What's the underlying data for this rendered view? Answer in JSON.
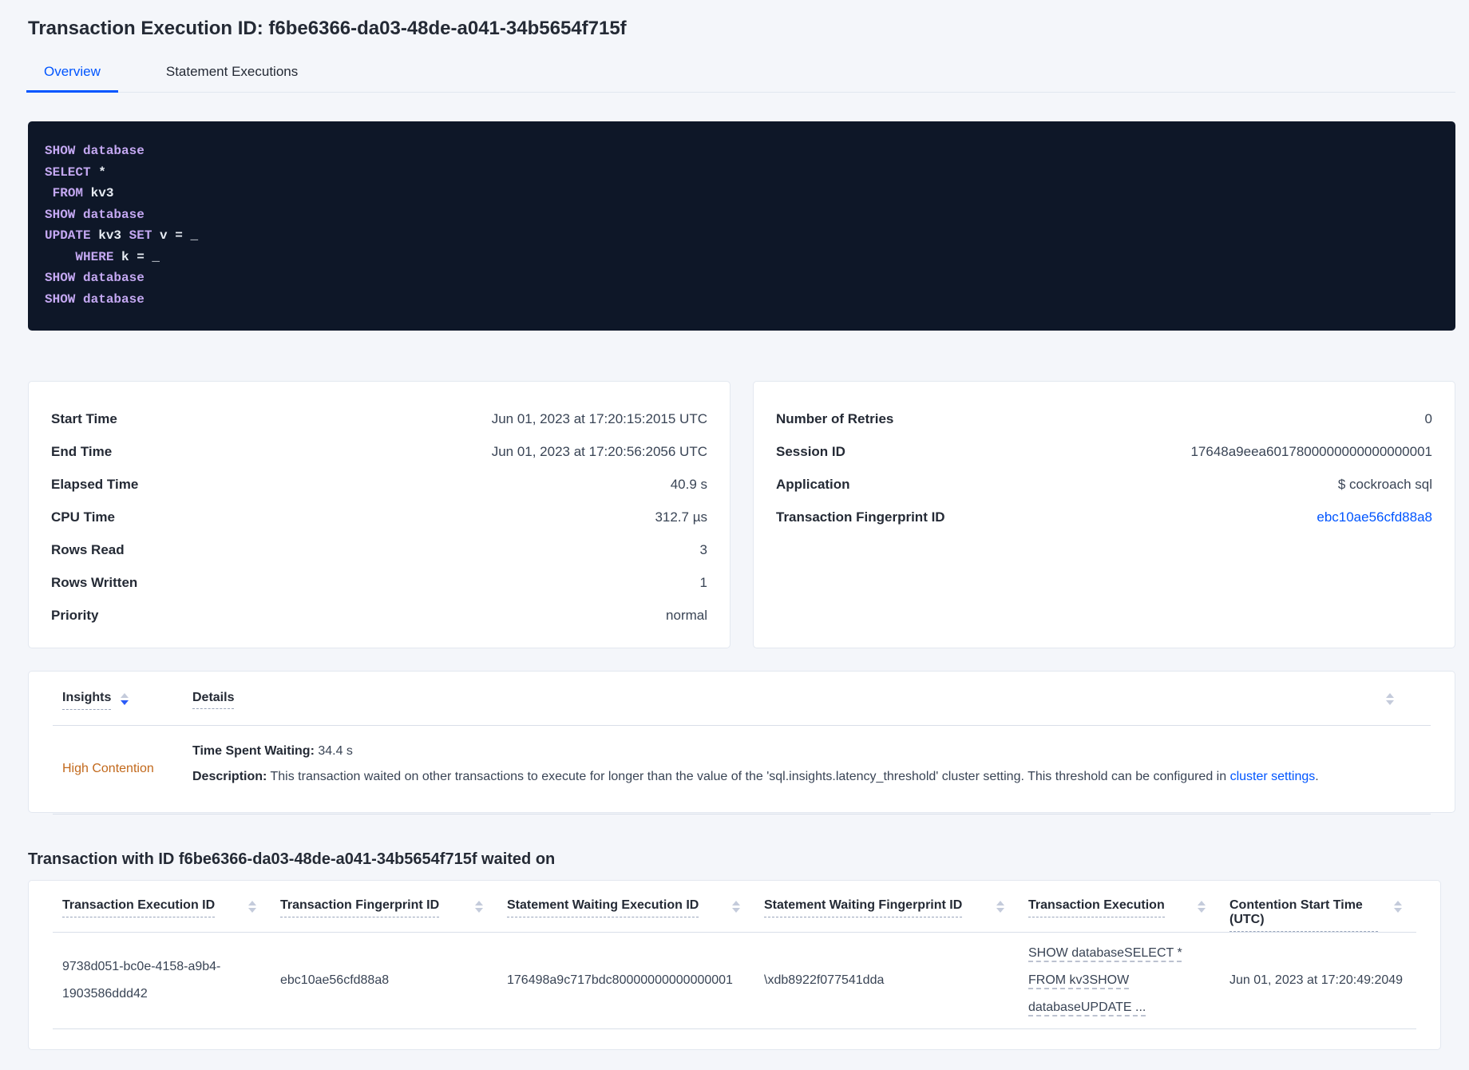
{
  "header": {
    "title": "Transaction Execution ID: f6be6366-da03-48de-a041-34b5654f715f",
    "tabs": [
      {
        "label": "Overview",
        "active": true
      },
      {
        "label": "Statement Executions",
        "active": false
      }
    ]
  },
  "colors": {
    "accent_blue": "#0055ff",
    "sql_background": "#0e1728",
    "sql_keyword": "#c4a8f2",
    "sql_plain": "#e7ecf3",
    "insight_warning": "#c2691c"
  },
  "sql_box": {
    "lines": [
      [
        {
          "kw": true,
          "v": "SHOW"
        },
        {
          "kw": false,
          "v": " "
        },
        {
          "kw": true,
          "v": "database"
        }
      ],
      [
        {
          "kw": true,
          "v": "SELECT"
        },
        {
          "kw": false,
          "v": " *"
        }
      ],
      [
        {
          "kw": false,
          "v": " "
        },
        {
          "kw": true,
          "v": "FROM"
        },
        {
          "kw": false,
          "v": " kv3"
        }
      ],
      [
        {
          "kw": true,
          "v": "SHOW"
        },
        {
          "kw": false,
          "v": " "
        },
        {
          "kw": true,
          "v": "database"
        }
      ],
      [
        {
          "kw": true,
          "v": "UPDATE"
        },
        {
          "kw": false,
          "v": " kv3 "
        },
        {
          "kw": true,
          "v": "SET"
        },
        {
          "kw": false,
          "v": " v = _"
        }
      ],
      [
        {
          "kw": false,
          "v": "    "
        },
        {
          "kw": true,
          "v": "WHERE"
        },
        {
          "kw": false,
          "v": " k = _"
        }
      ],
      [
        {
          "kw": true,
          "v": "SHOW"
        },
        {
          "kw": false,
          "v": " "
        },
        {
          "kw": true,
          "v": "database"
        }
      ],
      [
        {
          "kw": true,
          "v": "SHOW"
        },
        {
          "kw": false,
          "v": " "
        },
        {
          "kw": true,
          "v": "database"
        }
      ]
    ]
  },
  "left_card": {
    "rows": [
      {
        "label": "Start Time",
        "value": "Jun 01, 2023 at 17:20:15:2015 UTC"
      },
      {
        "label": "End Time",
        "value": "Jun 01, 2023 at 17:20:56:2056 UTC"
      },
      {
        "label": "Elapsed Time",
        "value": "40.9 s"
      },
      {
        "label": "CPU Time",
        "value": "312.7 µs"
      },
      {
        "label": "Rows Read",
        "value": "3"
      },
      {
        "label": "Rows Written",
        "value": "1"
      },
      {
        "label": "Priority",
        "value": "normal"
      }
    ]
  },
  "right_card": {
    "rows": [
      {
        "label": "Number of Retries",
        "value": "0"
      },
      {
        "label": "Session ID",
        "value": "17648a9eea6017800000000000000001"
      },
      {
        "label": "Application",
        "value": "$ cockroach sql"
      },
      {
        "label": "Transaction Fingerprint ID",
        "value": "ebc10ae56cfd88a8",
        "link": true
      }
    ]
  },
  "insights_table": {
    "columns": [
      "Insights",
      "Details"
    ],
    "row": {
      "insight": "High Contention",
      "waiting_label": "Time Spent Waiting:",
      "waiting_value": "34.4 s",
      "description_label": "Description:",
      "description_text": "This transaction waited on other transactions to execute for longer than the value of the 'sql.insights.latency_threshold' cluster setting. This threshold can be configured in ",
      "description_link": "cluster settings",
      "description_suffix": "."
    }
  },
  "waited_on": {
    "heading": "Transaction with ID f6be6366-da03-48de-a041-34b5654f715f waited on",
    "columns": [
      "Transaction Execution ID",
      "Transaction Fingerprint ID",
      "Statement Waiting Execution ID",
      "Statement Waiting Fingerprint ID",
      "Transaction Execution",
      "Contention Start Time (UTC)"
    ],
    "row": {
      "transaction_execution_id": "9738d051-bc0e-4158-a9b4-1903586ddd42",
      "transaction_fingerprint_id": "ebc10ae56cfd88a8",
      "statement_waiting_execution_id": "176498a9c717bdc80000000000000001",
      "statement_waiting_fingerprint_id": "\\xdb8922f077541dda",
      "transaction_execution": "SHOW databaseSELECT * FROM kv3SHOW databaseUPDATE ...",
      "contention_start_time": "Jun 01, 2023 at 17:20:49:2049"
    }
  }
}
